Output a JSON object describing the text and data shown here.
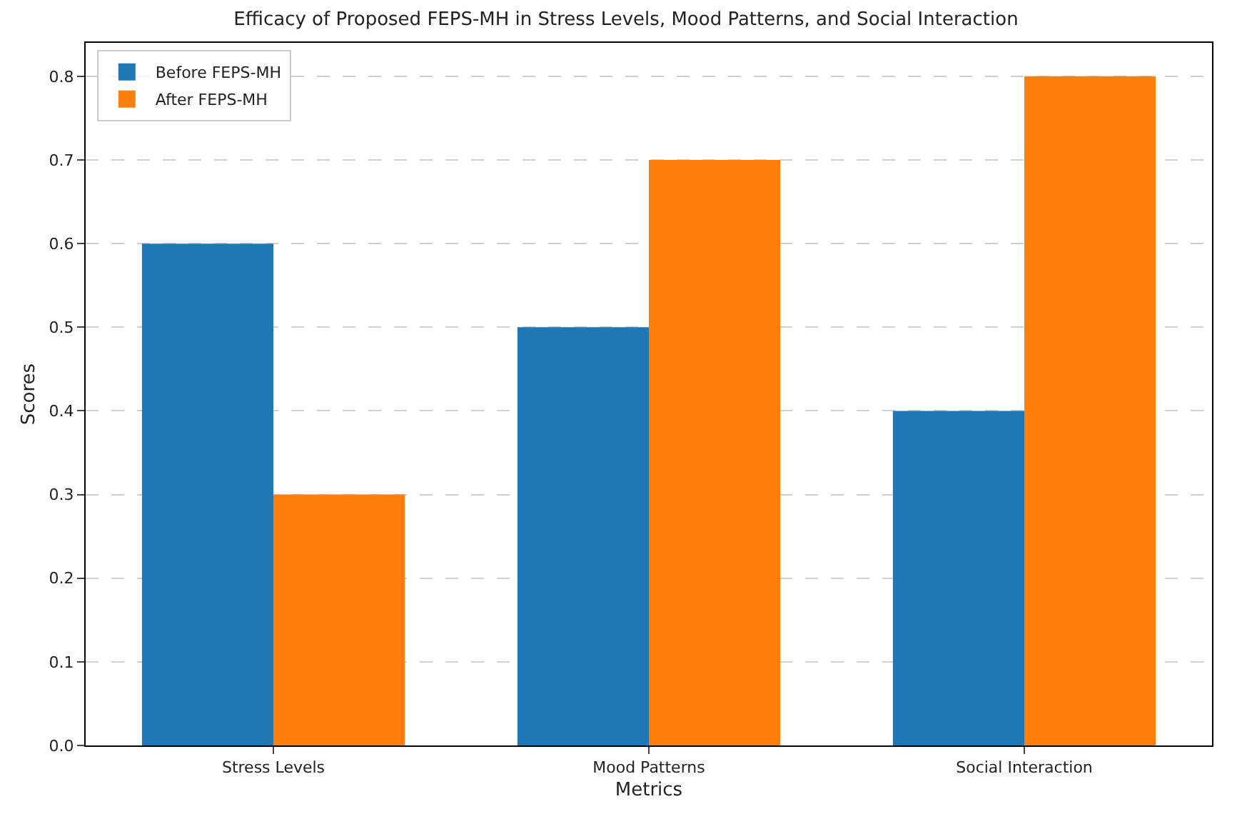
{
  "chart_data": {
    "type": "bar",
    "title": "Efficacy of Proposed FEPS-MH in Stress Levels, Mood Patterns, and Social Interaction",
    "xlabel": "Metrics",
    "ylabel": "Scores",
    "categories": [
      "Stress Levels",
      "Mood Patterns",
      "Social Interaction"
    ],
    "series": [
      {
        "name": "Before FEPS-MH",
        "color": "#1f77b4",
        "values": [
          0.6,
          0.5,
          0.4
        ]
      },
      {
        "name": "After FEPS-MH",
        "color": "#ff7f0e",
        "values": [
          0.3,
          0.7,
          0.8
        ]
      }
    ],
    "ylim": [
      0,
      0.84
    ],
    "yticks": [
      {
        "value": 0,
        "label": "0.0"
      },
      0.1,
      0.2,
      0.3,
      0.4,
      0.5,
      0.6,
      0.7,
      0.8
    ],
    "grid": "y",
    "legend": "top left"
  }
}
